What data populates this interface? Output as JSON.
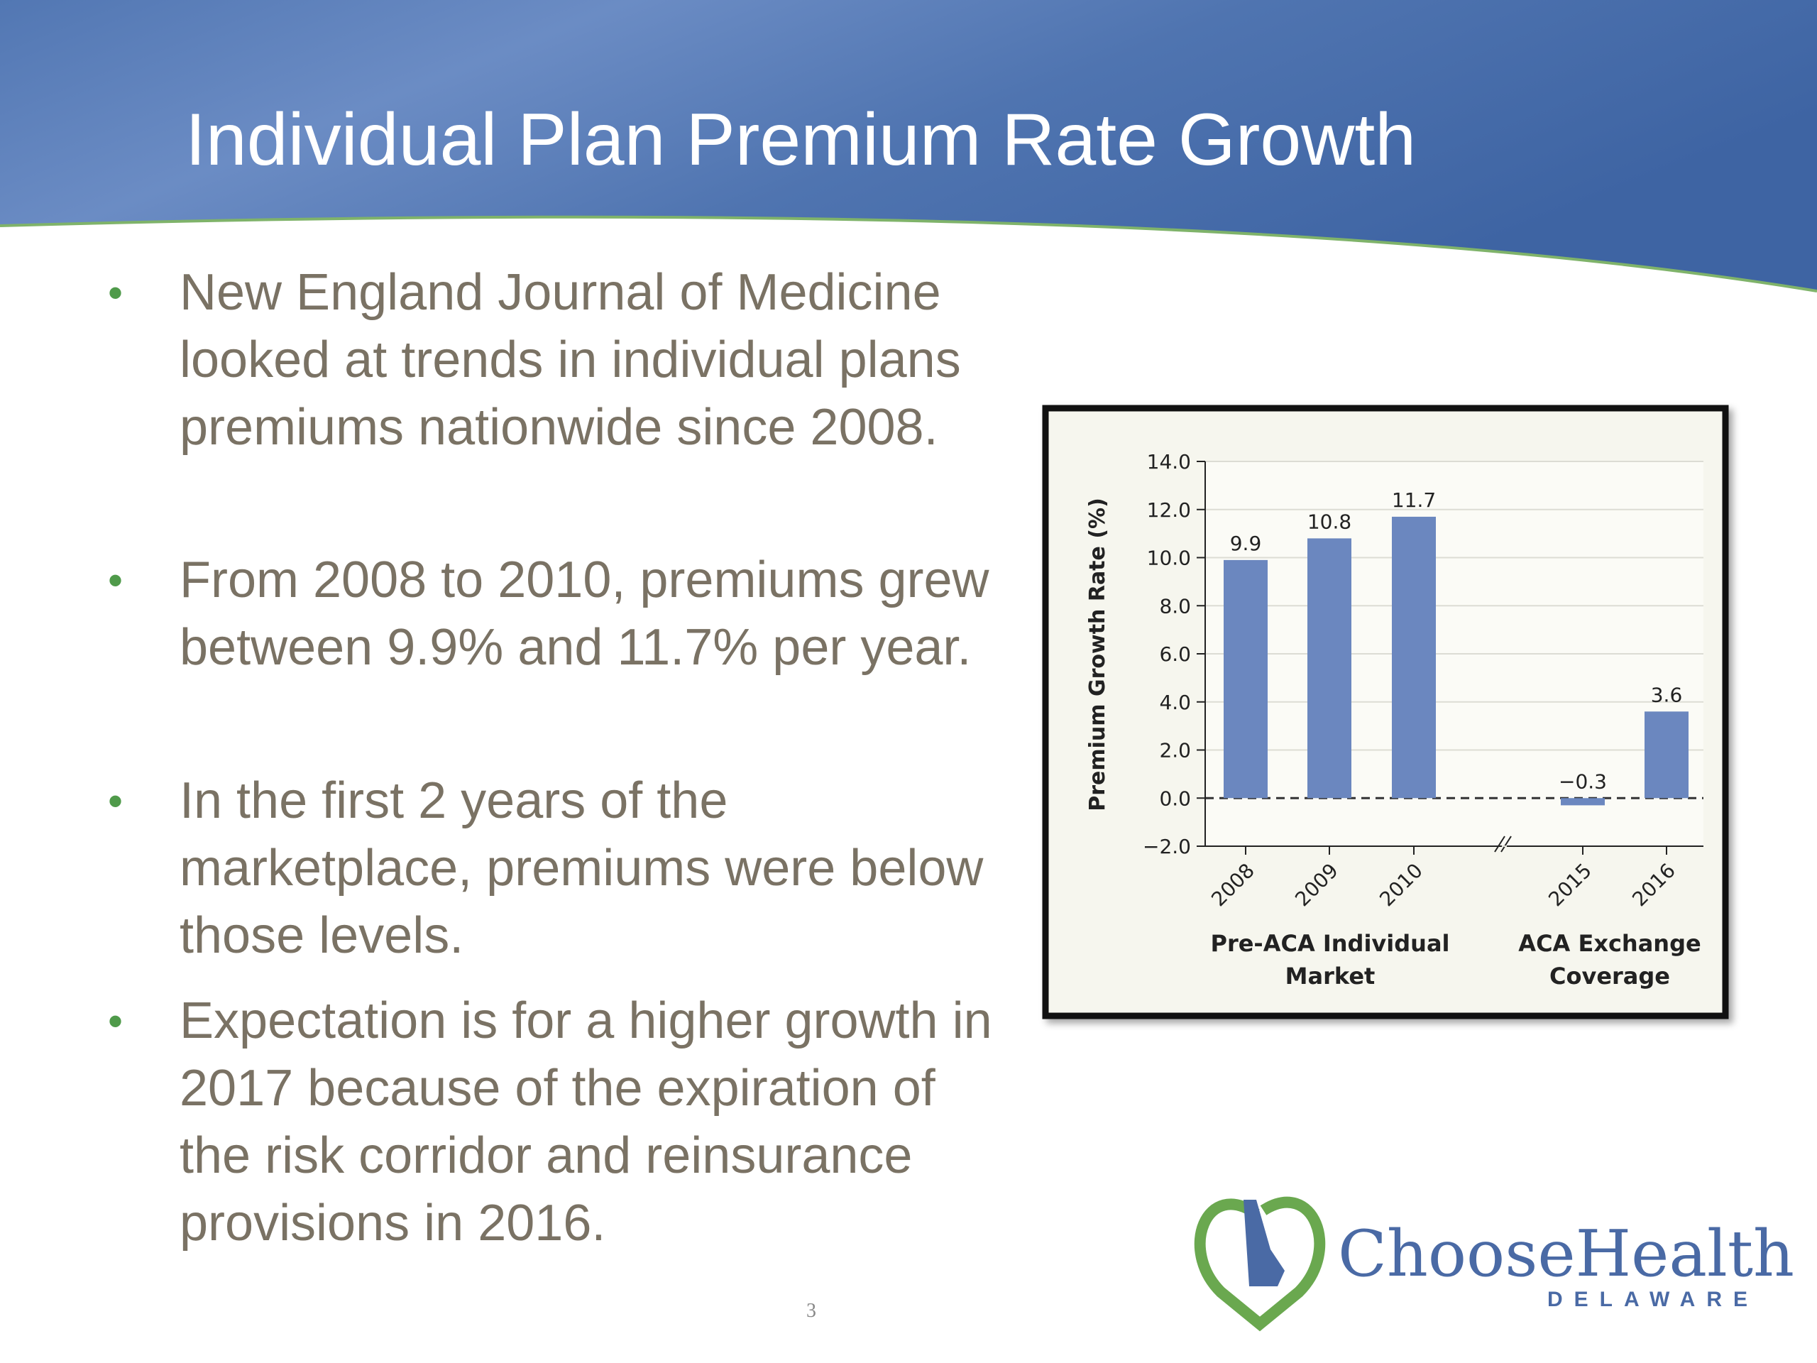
{
  "slide": {
    "title": "Individual Plan Premium Rate Growth",
    "bullets": [
      "New England Journal of Medicine looked at trends in individual plans premiums nationwide since 2008.",
      "From 2008 to 2010, premiums grew between 9.9% and 11.7% per year.",
      "In the first 2 years of the marketplace, premiums were below those levels.",
      "Expectation is for a higher growth in 2017 because of the expiration of the risk corridor and reinsurance provisions in 2016."
    ],
    "page_number": "3"
  },
  "logo": {
    "name": "ChooseHealth",
    "subtitle": "DELAWARE"
  },
  "chart_data": {
    "type": "bar",
    "y_label": "Premium Growth Rate (%)",
    "categories": [
      "2008",
      "2009",
      "2010",
      "2015",
      "2016"
    ],
    "values": [
      9.9,
      10.8,
      11.7,
      -0.3,
      3.6
    ],
    "value_labels": [
      "9.9",
      "10.8",
      "11.7",
      "−0.3",
      "3.6"
    ],
    "groups": [
      "Pre-ACA Individual Market",
      "ACA Exchange Coverage"
    ],
    "color": "#6b87bf",
    "ylim": [
      -2,
      14
    ],
    "yticks": [
      {
        "value": -2,
        "label": "−2.0"
      },
      {
        "value": 0,
        "label": "0.0"
      },
      {
        "value": 2,
        "label": "2.0"
      },
      {
        "value": 4,
        "label": "4.0"
      },
      {
        "value": 6,
        "label": "6.0"
      },
      {
        "value": 8,
        "label": "8.0"
      },
      {
        "value": 10,
        "label": "10.0"
      },
      {
        "value": 12,
        "label": "12.0"
      },
      {
        "value": 14,
        "label": "14.0"
      }
    ],
    "grid": true
  }
}
